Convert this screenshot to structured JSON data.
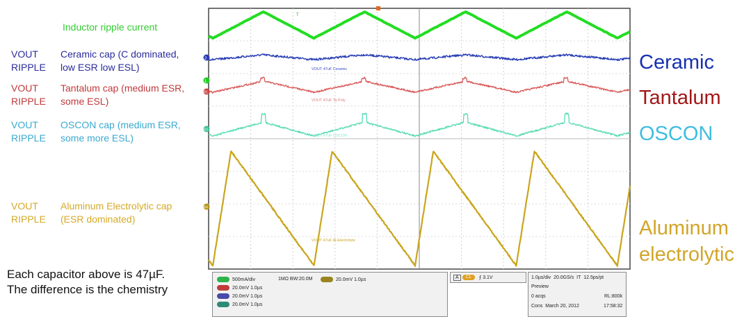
{
  "left_labels": {
    "inductor": "Inductor ripple current",
    "rows": [
      {
        "v1": "VOUT",
        "v2": "RIPPLE",
        "d1": "Ceramic cap (C dominated,",
        "d2": "low ESR low ESL)",
        "color": "#2b2b9c"
      },
      {
        "v1": "VOUT",
        "v2": "RIPPLE",
        "d1": "Tantalum cap (medium ESR,",
        "d2": "some ESL)",
        "color": "#c0393b"
      },
      {
        "v1": "VOUT",
        "v2": "RIPPLE",
        "d1": "OSCON cap (medium ESR,",
        "d2": "some more ESL)",
        "color": "#3aa9cf"
      },
      {
        "v1": "VOUT",
        "v2": "RIPPLE",
        "d1": "Aluminum Electrolytic cap",
        "d2": "(ESR dominated)",
        "color": "#d4a928"
      }
    ]
  },
  "note": {
    "line1": "Each capacitor above is 47µF.",
    "line2": "The difference is the chemistry"
  },
  "right_labels": {
    "ceramic": "Ceramic",
    "tantalum": "Tantalum",
    "oscon": "OSCON",
    "alu1": "Aluminum",
    "alu2": "electrolytic"
  },
  "colors": {
    "inductor": "#22dd22",
    "ceramic": "#2a3fb5",
    "tantalum": "#d95a5a",
    "oscon": "#59dcb4",
    "alu": "#c9a51c",
    "ceramic_text": "#1530b0",
    "tantalum_text": "#a01818",
    "oscon_text": "#3dbde0",
    "alu_text": "#d1a52a"
  },
  "trace_tags": {
    "ceramic": "VOUT 47uF Ceramic",
    "tantalum": "VOUT 47uF Ta Poly",
    "oscon": "VOUT 47uF OSCON",
    "alu": "VOUT 47uF Al-Electrolyte"
  },
  "channel_markers": {
    "c1": "1",
    "c2": "2",
    "r1": "R1",
    "r3": "R3",
    "r4": "R4",
    "t": "T"
  },
  "status": {
    "ch1": "500mA/div",
    "ch1_imp": "1MΩ",
    "ch1_bw": "BW:20.0M",
    "r1": "20.0mV",
    "r1_t": "1.0µs",
    "r2": "20.0mV",
    "r2_t": "1.0µs",
    "r3": "20.0mV",
    "r3_t": "1.0µs",
    "r4": "20.0mV",
    "r4_t": "1.0µs",
    "trig_ch": "C1",
    "trig_lvl": "3.1V",
    "trig_mode": "A",
    "timebase": "1.0µs/div",
    "rate": "20.0GS/s",
    "it": "IT",
    "res": "12.5ps/pt",
    "preview": "Preview",
    "acqs": "0 acqs",
    "rl": "RL:800k",
    "cons": "Cons",
    "date": "March 20, 2012",
    "time": "17:58:32"
  },
  "chart_data": {
    "type": "line",
    "x_unit": "µs",
    "xlim": [
      0,
      10
    ],
    "series": [
      {
        "key": "inductor",
        "period": 2.4,
        "phase": 0.1
      },
      {
        "key": "ceramic",
        "period": 2.4,
        "phase": 0.1
      },
      {
        "key": "tantalum",
        "period": 2.4,
        "phase": 0.1
      },
      {
        "key": "oscon",
        "period": 2.4,
        "phase": 0.1
      },
      {
        "key": "alu",
        "period": 2.4,
        "phase": 0.1
      }
    ]
  }
}
